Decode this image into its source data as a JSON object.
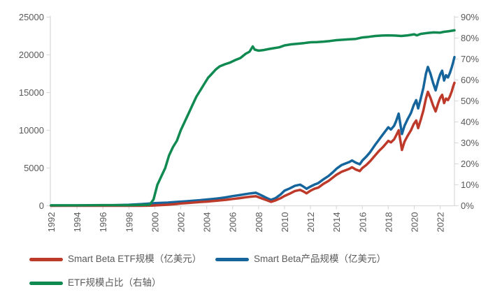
{
  "chart_data": {
    "type": "line",
    "title": "",
    "background": "#ffffff",
    "grid": false,
    "legend_position": "bottom-left",
    "axis_text_color": "#595959",
    "axis_line_color": "#d9d9d9",
    "x_axis": {
      "min": 1992,
      "max": 2023.1,
      "tick_years": [
        1992,
        1994,
        1996,
        1998,
        2000,
        2002,
        2004,
        2006,
        2008,
        2010,
        2012,
        2014,
        2016,
        2018,
        2020,
        2022
      ],
      "tick_labels": [
        "1992",
        "1994",
        "1996",
        "1998",
        "2000",
        "2002",
        "2004",
        "2006",
        "2008",
        "2010",
        "2012",
        "2014",
        "2016",
        "2018",
        "2020",
        "2022"
      ],
      "label_rotation": -90
    },
    "y_axis_left": {
      "min": 0,
      "max": 25000,
      "tick_step": 5000,
      "tick_labels": [
        "0",
        "5000",
        "10000",
        "15000",
        "20000",
        "25000"
      ]
    },
    "y_axis_right": {
      "min": 0,
      "max": 90,
      "tick_step": 10,
      "tick_labels": [
        "0%",
        "10%",
        "20%",
        "30%",
        "40%",
        "50%",
        "60%",
        "70%",
        "80%",
        "90%"
      ]
    },
    "series": [
      {
        "name": "Smart Beta ETF规模（亿美元）",
        "color": "#bd3a2a",
        "axis": "left",
        "points": [
          [
            1992,
            0
          ],
          [
            1999,
            0
          ],
          [
            1999.8,
            20
          ],
          [
            2000.5,
            90
          ],
          [
            2001,
            140
          ],
          [
            2001.5,
            200
          ],
          [
            2002,
            300
          ],
          [
            2002.5,
            360
          ],
          [
            2003,
            430
          ],
          [
            2003.5,
            500
          ],
          [
            2004,
            550
          ],
          [
            2004.5,
            620
          ],
          [
            2005,
            700
          ],
          [
            2005.5,
            790
          ],
          [
            2006,
            900
          ],
          [
            2006.5,
            1000
          ],
          [
            2007,
            1120
          ],
          [
            2007.4,
            1200
          ],
          [
            2007.8,
            1260
          ],
          [
            2008.2,
            1000
          ],
          [
            2008.6,
            750
          ],
          [
            2008.95,
            520
          ],
          [
            2009.3,
            700
          ],
          [
            2009.7,
            1000
          ],
          [
            2010,
            1300
          ],
          [
            2010.4,
            1600
          ],
          [
            2010.8,
            1950
          ],
          [
            2011.2,
            2100
          ],
          [
            2011.45,
            1900
          ],
          [
            2011.7,
            1650
          ],
          [
            2012,
            2000
          ],
          [
            2012.3,
            2250
          ],
          [
            2012.6,
            2400
          ],
          [
            2013,
            2900
          ],
          [
            2013.4,
            3300
          ],
          [
            2013.7,
            3700
          ],
          [
            2014,
            4100
          ],
          [
            2014.4,
            4500
          ],
          [
            2014.7,
            4700
          ],
          [
            2015,
            4900
          ],
          [
            2015.2,
            5100
          ],
          [
            2015.5,
            4800
          ],
          [
            2015.8,
            4600
          ],
          [
            2016,
            5000
          ],
          [
            2016.3,
            5400
          ],
          [
            2016.6,
            5900
          ],
          [
            2017,
            6700
          ],
          [
            2017.3,
            7300
          ],
          [
            2017.6,
            7800
          ],
          [
            2018,
            8600
          ],
          [
            2018.2,
            8400
          ],
          [
            2018.45,
            8800
          ],
          [
            2018.6,
            9300
          ],
          [
            2018.8,
            10000
          ],
          [
            2019.05,
            7400
          ],
          [
            2019.25,
            8500
          ],
          [
            2019.5,
            9300
          ],
          [
            2019.75,
            10000
          ],
          [
            2019.95,
            10800
          ],
          [
            2020.15,
            11300
          ],
          [
            2020.3,
            10300
          ],
          [
            2020.5,
            11400
          ],
          [
            2020.7,
            12600
          ],
          [
            2020.9,
            14200
          ],
          [
            2021.05,
            15100
          ],
          [
            2021.25,
            14300
          ],
          [
            2021.45,
            13300
          ],
          [
            2021.65,
            12500
          ],
          [
            2021.85,
            13600
          ],
          [
            2022,
            14300
          ],
          [
            2022.15,
            14700
          ],
          [
            2022.3,
            13600
          ],
          [
            2022.45,
            14200
          ],
          [
            2022.6,
            14000
          ],
          [
            2022.75,
            14500
          ],
          [
            2022.9,
            15200
          ],
          [
            2023,
            15800
          ],
          [
            2023.1,
            16300
          ]
        ]
      },
      {
        "name": "Smart Beta产品规模（亿美元）",
        "color": "#15659c",
        "axis": "left",
        "points": [
          [
            1992,
            10
          ],
          [
            1993,
            15
          ],
          [
            1994,
            25
          ],
          [
            1995,
            35
          ],
          [
            1996,
            50
          ],
          [
            1997,
            80
          ],
          [
            1998,
            130
          ],
          [
            1999,
            220
          ],
          [
            1999.5,
            280
          ],
          [
            2000,
            340
          ],
          [
            2000.5,
            380
          ],
          [
            2001,
            420
          ],
          [
            2001.5,
            480
          ],
          [
            2002,
            550
          ],
          [
            2002.5,
            600
          ],
          [
            2003,
            680
          ],
          [
            2003.5,
            740
          ],
          [
            2004,
            820
          ],
          [
            2004.5,
            900
          ],
          [
            2005,
            1000
          ],
          [
            2005.5,
            1120
          ],
          [
            2006,
            1280
          ],
          [
            2006.5,
            1400
          ],
          [
            2007,
            1550
          ],
          [
            2007.4,
            1650
          ],
          [
            2007.8,
            1720
          ],
          [
            2008.2,
            1400
          ],
          [
            2008.6,
            1050
          ],
          [
            2008.95,
            780
          ],
          [
            2009.3,
            1000
          ],
          [
            2009.7,
            1500
          ],
          [
            2010,
            2000
          ],
          [
            2010.4,
            2300
          ],
          [
            2010.8,
            2650
          ],
          [
            2011.2,
            2800
          ],
          [
            2011.45,
            2550
          ],
          [
            2011.7,
            2250
          ],
          [
            2012,
            2550
          ],
          [
            2012.3,
            2800
          ],
          [
            2012.6,
            3000
          ],
          [
            2013,
            3500
          ],
          [
            2013.4,
            3950
          ],
          [
            2013.7,
            4400
          ],
          [
            2014,
            4900
          ],
          [
            2014.4,
            5400
          ],
          [
            2014.7,
            5600
          ],
          [
            2015,
            5800
          ],
          [
            2015.2,
            6000
          ],
          [
            2015.5,
            5700
          ],
          [
            2015.8,
            5500
          ],
          [
            2016,
            6000
          ],
          [
            2016.3,
            6500
          ],
          [
            2016.6,
            7100
          ],
          [
            2017,
            8100
          ],
          [
            2017.3,
            8800
          ],
          [
            2017.6,
            9500
          ],
          [
            2018,
            10400
          ],
          [
            2018.2,
            10100
          ],
          [
            2018.45,
            10600
          ],
          [
            2018.6,
            11200
          ],
          [
            2018.8,
            12200
          ],
          [
            2019.05,
            9500
          ],
          [
            2019.25,
            10600
          ],
          [
            2019.5,
            11500
          ],
          [
            2019.75,
            12300
          ],
          [
            2019.95,
            13300
          ],
          [
            2020.15,
            14000
          ],
          [
            2020.3,
            12900
          ],
          [
            2020.5,
            14200
          ],
          [
            2020.7,
            15600
          ],
          [
            2020.9,
            17500
          ],
          [
            2021.05,
            18400
          ],
          [
            2021.25,
            17500
          ],
          [
            2021.45,
            16300
          ],
          [
            2021.65,
            15300
          ],
          [
            2021.85,
            16600
          ],
          [
            2022,
            17400
          ],
          [
            2022.15,
            17900
          ],
          [
            2022.3,
            16600
          ],
          [
            2022.45,
            17300
          ],
          [
            2022.6,
            17000
          ],
          [
            2022.75,
            17600
          ],
          [
            2022.9,
            18400
          ],
          [
            2023,
            19000
          ],
          [
            2023.1,
            19700
          ]
        ]
      },
      {
        "name": "ETF规模占比（右轴）",
        "color": "#118a52",
        "axis": "right",
        "points": [
          [
            1992,
            0.2
          ],
          [
            1994,
            0.2
          ],
          [
            1996,
            0.3
          ],
          [
            1998,
            0.3
          ],
          [
            1999,
            0.4
          ],
          [
            1999.6,
            0.5
          ],
          [
            1999.9,
            3
          ],
          [
            2000.2,
            10
          ],
          [
            2000.5,
            14
          ],
          [
            2000.8,
            18
          ],
          [
            2001.1,
            24
          ],
          [
            2001.4,
            28
          ],
          [
            2001.7,
            31
          ],
          [
            2002,
            36
          ],
          [
            2002.3,
            40
          ],
          [
            2002.6,
            44
          ],
          [
            2002.9,
            48
          ],
          [
            2003.2,
            52
          ],
          [
            2003.5,
            55
          ],
          [
            2003.8,
            58
          ],
          [
            2004.1,
            61
          ],
          [
            2004.4,
            63
          ],
          [
            2004.7,
            65
          ],
          [
            2005,
            66.5
          ],
          [
            2005.4,
            67.5
          ],
          [
            2005.8,
            68.3
          ],
          [
            2006.2,
            69.5
          ],
          [
            2006.6,
            70.5
          ],
          [
            2007,
            72.5
          ],
          [
            2007.3,
            73.5
          ],
          [
            2007.55,
            76
          ],
          [
            2007.7,
            74.5
          ],
          [
            2008,
            74
          ],
          [
            2008.4,
            74.3
          ],
          [
            2008.8,
            74.8
          ],
          [
            2009.2,
            75.2
          ],
          [
            2009.6,
            75.6
          ],
          [
            2010,
            76.5
          ],
          [
            2010.5,
            77
          ],
          [
            2011,
            77.3
          ],
          [
            2011.5,
            77.6
          ],
          [
            2012,
            78
          ],
          [
            2012.5,
            78.1
          ],
          [
            2013,
            78.3
          ],
          [
            2013.5,
            78.6
          ],
          [
            2014,
            79
          ],
          [
            2014.5,
            79.2
          ],
          [
            2015,
            79.4
          ],
          [
            2015.5,
            79.6
          ],
          [
            2016,
            80.3
          ],
          [
            2016.5,
            80.6
          ],
          [
            2017,
            81
          ],
          [
            2017.5,
            81.2
          ],
          [
            2018,
            81.3
          ],
          [
            2018.5,
            81.2
          ],
          [
            2019,
            81
          ],
          [
            2019.5,
            81.3
          ],
          [
            2020,
            81.8
          ],
          [
            2020.2,
            81.3
          ],
          [
            2020.5,
            82
          ],
          [
            2021,
            82.4
          ],
          [
            2021.5,
            82.7
          ],
          [
            2022,
            82.6
          ],
          [
            2022.3,
            83
          ],
          [
            2022.6,
            83.2
          ],
          [
            2022.9,
            83.5
          ],
          [
            2023.1,
            83.7
          ]
        ]
      }
    ]
  }
}
